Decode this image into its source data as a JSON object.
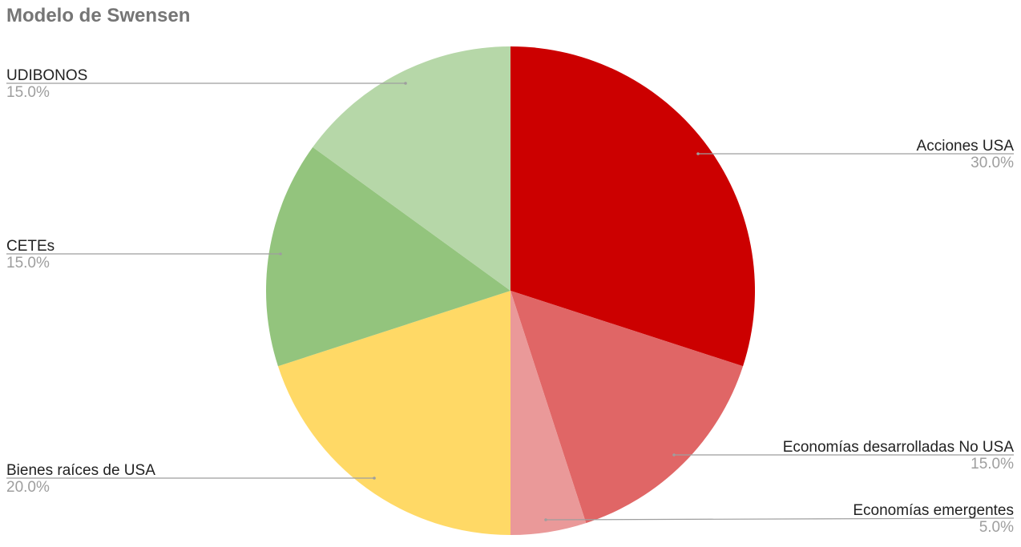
{
  "chart_data": {
    "type": "pie",
    "title": "Modelo de Swensen",
    "start": "top",
    "direction": "clockwise",
    "slices": [
      {
        "label": "Acciones USA",
        "value": 30.0,
        "display": "30.0%",
        "color": "#cc0000"
      },
      {
        "label": "Economías desarrolladas No USA",
        "value": 15.0,
        "display": "15.0%",
        "color": "#e06666"
      },
      {
        "label": "Economías emergentes",
        "value": 5.0,
        "display": "5.0%",
        "color": "#ea9999"
      },
      {
        "label": "Bienes raíces de USA",
        "value": 20.0,
        "display": "20.0%",
        "color": "#ffd966"
      },
      {
        "label": "CETEs",
        "value": 15.0,
        "display": "15.0%",
        "color": "#93c47d"
      },
      {
        "label": "UDIBONOS",
        "value": 15.0,
        "display": "15.0%",
        "color": "#b6d7a8"
      }
    ],
    "legend": "none"
  }
}
